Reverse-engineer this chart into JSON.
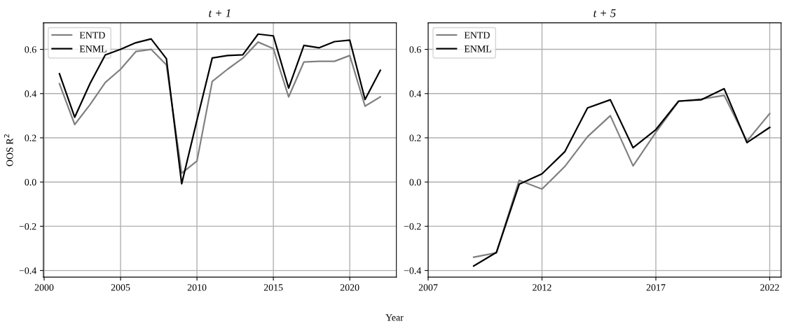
{
  "chart_data": [
    {
      "type": "line",
      "title": "t + 1",
      "ylabel": "OOS R$^{2}$",
      "xlabel": "Year",
      "x": [
        2001,
        2002,
        2003,
        2004,
        2005,
        2006,
        2007,
        2008,
        2009,
        2010,
        2011,
        2012,
        2013,
        2014,
        2015,
        2016,
        2017,
        2018,
        2019,
        2020,
        2021,
        2022
      ],
      "series": [
        {
          "name": "ENTD",
          "color": "#808080",
          "values": [
            0.445,
            0.26,
            0.35,
            0.45,
            0.51,
            0.59,
            0.6,
            0.53,
            0.04,
            0.095,
            0.455,
            0.51,
            0.56,
            0.633,
            0.603,
            0.385,
            0.543,
            0.546,
            0.546,
            0.572,
            0.343,
            0.385
          ]
        },
        {
          "name": "ENML",
          "color": "#000000",
          "values": [
            0.49,
            0.293,
            0.445,
            0.575,
            0.6,
            0.63,
            0.647,
            0.558,
            -0.008,
            0.28,
            0.561,
            0.572,
            0.575,
            0.669,
            0.661,
            0.425,
            0.618,
            0.607,
            0.635,
            0.642,
            0.373,
            0.505
          ]
        }
      ],
      "xlim": [
        1999.95,
        2023.05
      ],
      "ylim": [
        -0.43,
        0.72
      ],
      "xticks": [
        2000,
        2005,
        2010,
        2015,
        2020
      ],
      "yticks": [
        {
          "value": -0.4,
          "label": "−0.4"
        },
        {
          "value": -0.2,
          "label": "−0.2"
        },
        {
          "value": 0,
          "label": "0.0"
        },
        {
          "value": 0.2,
          "label": "0.2"
        },
        {
          "value": 0.4,
          "label": "0.4"
        },
        {
          "value": 0.6,
          "label": "0.6"
        }
      ],
      "grid": true,
      "legend": "top left",
      "marker": "none",
      "line_style": "solid"
    },
    {
      "type": "line",
      "title": "t + 5",
      "x": [
        2009,
        2010,
        2011,
        2012,
        2013,
        2014,
        2015,
        2016,
        2017,
        2018,
        2019,
        2020,
        2021,
        2022
      ],
      "series": [
        {
          "name": "ENTD",
          "color": "#808080",
          "values": [
            -0.34,
            -0.32,
            0.008,
            -0.032,
            0.07,
            0.205,
            0.3,
            0.073,
            0.225,
            0.365,
            0.375,
            0.392,
            0.185,
            0.31
          ]
        },
        {
          "name": "ENML",
          "color": "#000000",
          "values": [
            -0.38,
            -0.318,
            -0.01,
            0.037,
            0.137,
            0.335,
            0.372,
            0.155,
            0.237,
            0.366,
            0.372,
            0.422,
            0.178,
            0.247
          ]
        }
      ],
      "xlim": [
        2007,
        2022.5
      ],
      "ylim": [
        -0.43,
        0.72
      ],
      "xticks": [
        2007,
        2012,
        2017,
        2022
      ],
      "yticks": [
        {
          "value": -0.4,
          "label": "−0.4"
        },
        {
          "value": -0.2,
          "label": "−0.2"
        },
        {
          "value": 0,
          "label": "0.0"
        },
        {
          "value": 0.2,
          "label": "0.2"
        },
        {
          "value": 0.4,
          "label": "0.4"
        },
        {
          "value": 0.6,
          "label": "0.6"
        }
      ],
      "grid": true,
      "legend": "top left",
      "marker": "none",
      "line_style": "solid"
    }
  ]
}
